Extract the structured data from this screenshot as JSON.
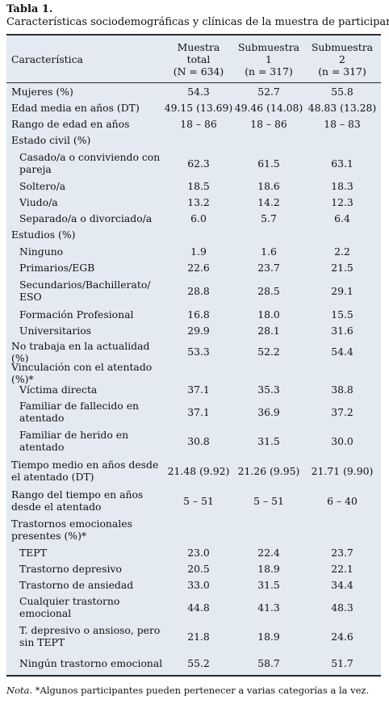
{
  "title": "Tabla 1.",
  "subtitle": "Características sociodemográficas y clínicas de la muestra de participantes",
  "header": {
    "col0": "Característica",
    "col1": [
      "Muestra",
      "total",
      "(N = 634)"
    ],
    "col2": [
      "Submuestra",
      "1",
      "(n = 317)"
    ],
    "col3": [
      "Submuestra",
      "2",
      "(n = 317)"
    ]
  },
  "rows": [
    {
      "label": "Mujeres (%)",
      "v": [
        "54.3",
        "52.7",
        "55.8"
      ]
    },
    {
      "label": "Edad media en años (DT)",
      "v": [
        "49.15 (13.69)",
        "49.46 (14.08)",
        "48.83 (13.28)"
      ]
    },
    {
      "label": "Rango de edad en años",
      "v": [
        "18 – 86",
        "18 – 86",
        "18 – 83"
      ]
    },
    {
      "label": "Estado civil (%)",
      "v": [
        "",
        "",
        ""
      ]
    },
    {
      "label": "Casado/a o conviviendo con pareja",
      "v": [
        "62.3",
        "61.5",
        "63.1"
      ]
    },
    {
      "label": "Soltero/a",
      "v": [
        "18.5",
        "18.6",
        "18.3"
      ]
    },
    {
      "label": "Viudo/a",
      "v": [
        "13.2",
        "14.2",
        "12.3"
      ]
    },
    {
      "label": "Separado/a o divorciado/a",
      "v": [
        "6.0",
        "5.7",
        "6.4"
      ]
    },
    {
      "label": "Estudios (%)",
      "v": [
        "",
        "",
        ""
      ]
    },
    {
      "label": "Ninguno",
      "v": [
        "1.9",
        "1.6",
        "2.2"
      ]
    },
    {
      "label": "Primarios/EGB",
      "v": [
        "22.6",
        "23.7",
        "21.5"
      ]
    },
    {
      "label": "Secundarios/Bachillerato/ ESO",
      "v": [
        "28.8",
        "28.5",
        "29.1"
      ]
    },
    {
      "label": "Formación Profesional",
      "v": [
        "16.8",
        "18.0",
        "15.5"
      ]
    },
    {
      "label": "Universitarios",
      "v": [
        "29.9",
        "28.1",
        "31.6"
      ]
    },
    {
      "label": "No trabaja en la actualidad (%)",
      "v": [
        "53.3",
        "52.2",
        "54.4"
      ]
    },
    {
      "label": "Vinculación con el atentado (%)*",
      "v": [
        "",
        "",
        ""
      ]
    },
    {
      "label": "Víctima directa",
      "v": [
        "37.1",
        "35.3",
        "38.8"
      ]
    },
    {
      "label": "Familiar de fallecido en atentado",
      "v": [
        "37.1",
        "36.9",
        "37.2"
      ]
    },
    {
      "label": "Familiar de herido en atentado",
      "v": [
        "30.8",
        "31.5",
        "30.0"
      ]
    },
    {
      "label": "Tiempo medio en años desde el atentado (DT)",
      "v": [
        "21.48 (9.92)",
        "21.26 (9.95)",
        "21.71 (9.90)"
      ]
    },
    {
      "label": "Rango del tiempo en años desde el atentado",
      "v": [
        "5 – 51",
        "5 – 51",
        "6 – 40"
      ]
    },
    {
      "label": "Trastornos emocionales presentes (%)*",
      "v": [
        "",
        "",
        ""
      ]
    },
    {
      "label": "TEPT",
      "v": [
        "23.0",
        "22.4",
        "23.7"
      ]
    },
    {
      "label": "Trastorno depresivo",
      "v": [
        "20.5",
        "18.9",
        "22.1"
      ]
    },
    {
      "label": "Trastorno de ansiedad",
      "v": [
        "33.0",
        "31.5",
        "34.4"
      ]
    },
    {
      "label": "Cualquier trastorno emocional",
      "v": [
        "44.8",
        "41.3",
        "48.3"
      ]
    },
    {
      "label": "T. depresivo o ansioso, pero sin TEPT",
      "v": [
        "21.8",
        "18.9",
        "24.6"
      ]
    },
    {
      "label": "Ningún trastorno emocional",
      "v": [
        "55.2",
        "58.7",
        "51.7"
      ]
    }
  ],
  "note": {
    "prefix": "Nota.",
    "text": " *Algunos participantes pueden pertenecer a varias categorías a la vez."
  }
}
